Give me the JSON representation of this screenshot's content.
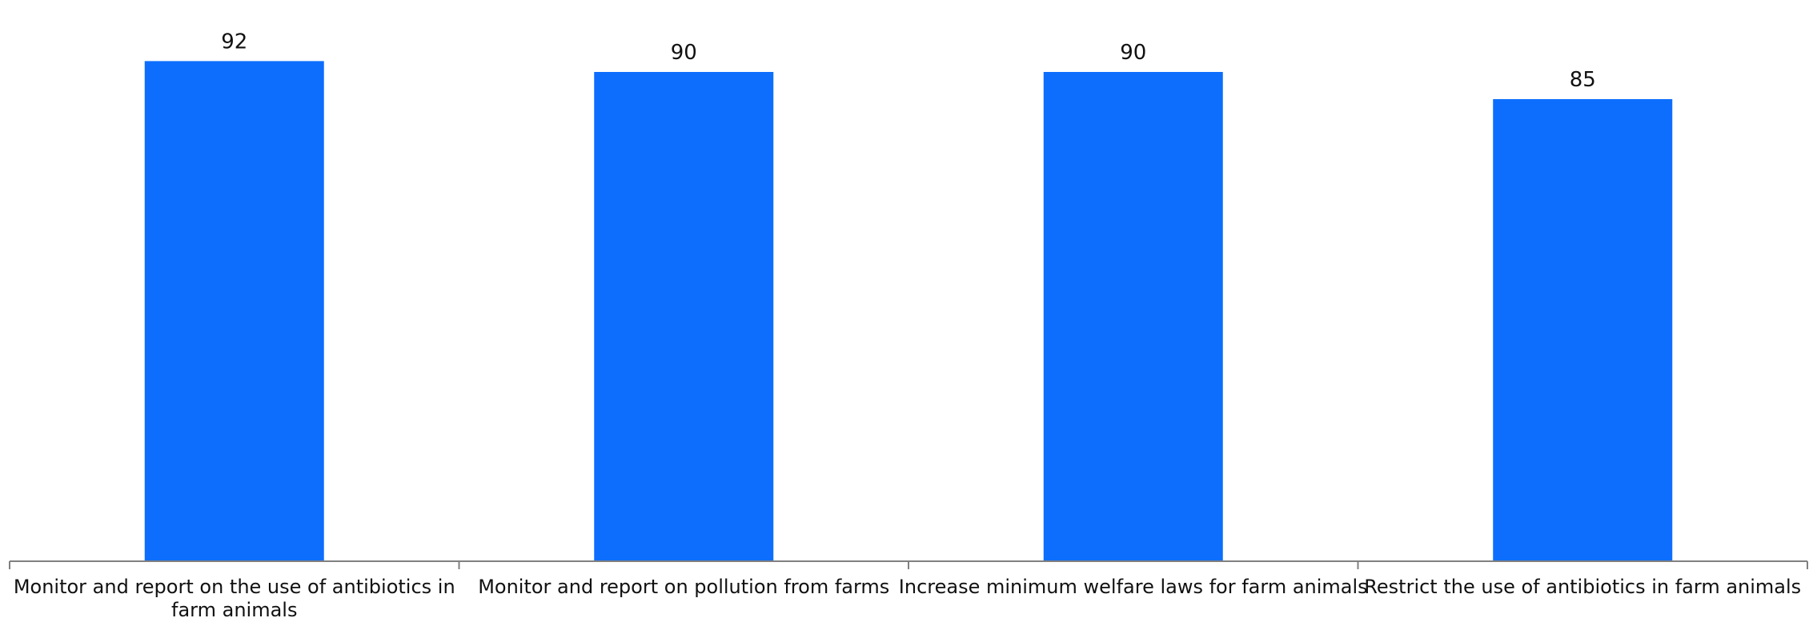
{
  "chart_data": {
    "type": "bar",
    "title": "",
    "xlabel": "",
    "ylabel": "",
    "categories": [
      "Monitor and report on the use of antibiotics in farm animals",
      "Monitor and report on pollution from farms",
      "Increase minimum welfare laws for farm animals",
      "Restrict the use of antibiotics in farm animals"
    ],
    "values": [
      92,
      90,
      90,
      85
    ],
    "data_labels": [
      "92",
      "90",
      "90",
      "85"
    ],
    "ylim": [
      0,
      100
    ],
    "grid": false,
    "legend": "none",
    "bar_color": "#0d6efd"
  }
}
